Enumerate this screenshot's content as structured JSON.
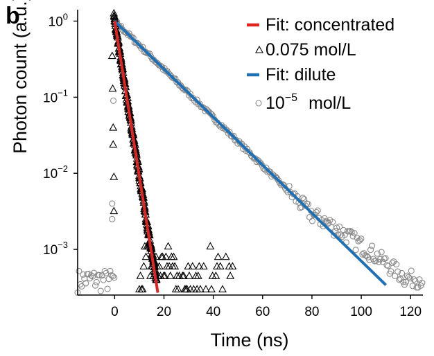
{
  "panel_label": "b",
  "chart_data": {
    "type": "scatter",
    "title": "",
    "xlabel": "Time (ns)",
    "ylabel": "Photon count (a.u.)",
    "xlim": [
      -15,
      125
    ],
    "ylim_log10": [
      -3.6,
      0.15
    ],
    "yscale": "log",
    "xticks": [
      0,
      20,
      40,
      60,
      80,
      100,
      120
    ],
    "yticks": [
      {
        "base": "10",
        "exp": "0"
      },
      {
        "base": "10",
        "exp": "−1"
      },
      {
        "base": "10",
        "exp": "−2"
      },
      {
        "base": "10",
        "exp": "−3"
      }
    ],
    "legend_position": "top-right",
    "series": [
      {
        "name": "Fit: concentrated",
        "kind": "fit-line",
        "color": "#e02424",
        "x": [
          0,
          17.5
        ],
        "y": [
          1.0,
          0.00027
        ]
      },
      {
        "name": "0.075 mol/L",
        "kind": "scatter",
        "marker": "triangle",
        "color": "#000000",
        "decay_tau_ns": 2.15,
        "x_range": [
          -2,
          48
        ],
        "noise_floor": 0.0003
      },
      {
        "name": "Fit: dilute",
        "kind": "fit-line",
        "color": "#1f6fb5",
        "x": [
          0,
          110
        ],
        "y": [
          1.0,
          0.00034
        ]
      },
      {
        "name": "10",
        "name_sup": "−5",
        "name_suffix": "mol/L",
        "kind": "scatter",
        "marker": "circle",
        "color": "#8a8a8a",
        "decay_tau_ns": 13.7,
        "x_range": [
          -15,
          125
        ],
        "noise_floor": 0.0003
      }
    ]
  }
}
